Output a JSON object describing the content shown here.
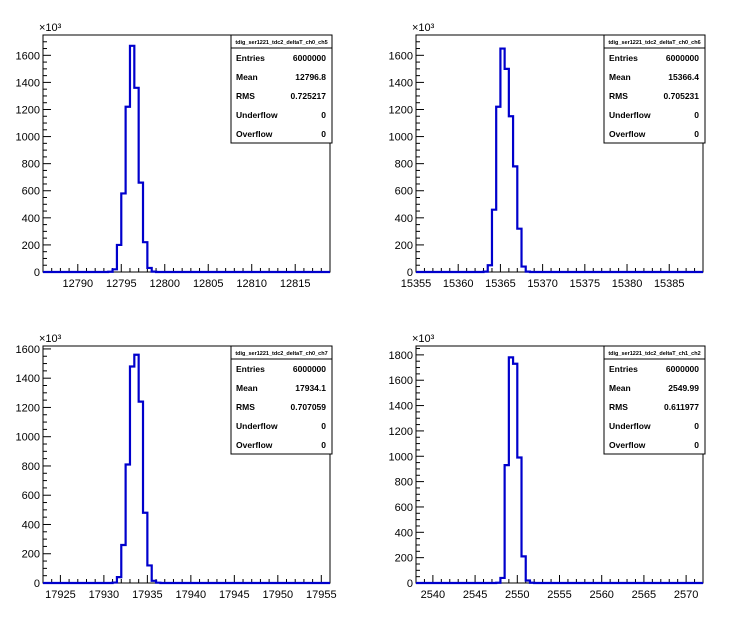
{
  "chart_data": [
    {
      "type": "histogram",
      "stats": {
        "title": "tdig_ser1221_tdc2_deltaT_ch0_ch5",
        "rows": [
          [
            "Entries",
            "6000000"
          ],
          [
            "Mean",
            "12796.8"
          ],
          [
            "RMS",
            "0.725217"
          ],
          [
            "Underflow",
            "0"
          ],
          [
            "Overflow",
            "0"
          ]
        ]
      },
      "y_exponent": "10³",
      "xlim": [
        12786,
        12819
      ],
      "ylim": [
        0,
        1750
      ],
      "x_ticks": [
        12790,
        12795,
        12800,
        12805,
        12810,
        12815
      ],
      "x_tick_labels": [
        "12790",
        "12795",
        "12800",
        "12805",
        "12810",
        "12815"
      ],
      "y_ticks": [
        0,
        200,
        400,
        600,
        800,
        1000,
        1200,
        1400,
        1600
      ],
      "y_tick_labels": [
        "0",
        "200",
        "400",
        "600",
        "800",
        "1000",
        "1200",
        "1400",
        "1600"
      ],
      "bin_width": 0.5,
      "bins": [
        {
          "x": 12794.0,
          "y": 2
        },
        {
          "x": 12794.5,
          "y": 20
        },
        {
          "x": 12795.0,
          "y": 200
        },
        {
          "x": 12795.5,
          "y": 580
        },
        {
          "x": 12796.0,
          "y": 1220
        },
        {
          "x": 12796.5,
          "y": 1670
        },
        {
          "x": 12797.0,
          "y": 1360
        },
        {
          "x": 12797.5,
          "y": 660
        },
        {
          "x": 12798.0,
          "y": 220
        },
        {
          "x": 12798.5,
          "y": 30
        },
        {
          "x": 12799.0,
          "y": 3
        }
      ]
    },
    {
      "type": "histogram",
      "stats": {
        "title": "tdig_ser1221_tdc2_deltaT_ch0_ch6",
        "rows": [
          [
            "Entries",
            "6000000"
          ],
          [
            "Mean",
            "15366.4"
          ],
          [
            "RMS",
            "0.705231"
          ],
          [
            "Underflow",
            "0"
          ],
          [
            "Overflow",
            "0"
          ]
        ]
      },
      "y_exponent": "10³",
      "xlim": [
        15355,
        15389
      ],
      "ylim": [
        0,
        1750
      ],
      "x_ticks": [
        15355,
        15360,
        15365,
        15370,
        15375,
        15380,
        15385
      ],
      "x_tick_labels": [
        "15355",
        "15360",
        "15365",
        "15370",
        "15375",
        "15380",
        "15385"
      ],
      "y_ticks": [
        0,
        200,
        400,
        600,
        800,
        1000,
        1200,
        1400,
        1600
      ],
      "y_tick_labels": [
        "0",
        "200",
        "400",
        "600",
        "800",
        "1000",
        "1200",
        "1400",
        "1600"
      ],
      "bin_width": 0.5,
      "bins": [
        {
          "x": 15363.5,
          "y": 3
        },
        {
          "x": 15364.0,
          "y": 50
        },
        {
          "x": 15364.5,
          "y": 460
        },
        {
          "x": 15365.0,
          "y": 1220
        },
        {
          "x": 15365.5,
          "y": 1650
        },
        {
          "x": 15366.0,
          "y": 1500
        },
        {
          "x": 15366.5,
          "y": 1150
        },
        {
          "x": 15367.0,
          "y": 780
        },
        {
          "x": 15367.5,
          "y": 320
        },
        {
          "x": 15368.0,
          "y": 40
        },
        {
          "x": 15368.5,
          "y": 3
        }
      ]
    },
    {
      "type": "histogram",
      "stats": {
        "title": "tdig_ser1221_tdc2_deltaT_ch0_ch7",
        "rows": [
          [
            "Entries",
            "6000000"
          ],
          [
            "Mean",
            "17934.1"
          ],
          [
            "RMS",
            "0.707059"
          ],
          [
            "Underflow",
            "0"
          ],
          [
            "Overflow",
            "0"
          ]
        ]
      },
      "y_exponent": "10³",
      "xlim": [
        17923,
        17956
      ],
      "ylim": [
        0,
        1620
      ],
      "x_ticks": [
        17925,
        17930,
        17935,
        17940,
        17945,
        17950,
        17955
      ],
      "x_tick_labels": [
        "17925",
        "17930",
        "17935",
        "17940",
        "17945",
        "17950",
        "17955"
      ],
      "y_ticks": [
        0,
        200,
        400,
        600,
        800,
        1000,
        1200,
        1400,
        1600
      ],
      "y_tick_labels": [
        "0",
        "200",
        "400",
        "600",
        "800",
        "1000",
        "1200",
        "1400",
        "1600"
      ],
      "bin_width": 0.5,
      "bins": [
        {
          "x": 17931.5,
          "y": 3
        },
        {
          "x": 17932.0,
          "y": 40
        },
        {
          "x": 17932.5,
          "y": 260
        },
        {
          "x": 17933.0,
          "y": 810
        },
        {
          "x": 17933.5,
          "y": 1480
        },
        {
          "x": 17934.0,
          "y": 1560
        },
        {
          "x": 17934.5,
          "y": 1240
        },
        {
          "x": 17935.0,
          "y": 480
        },
        {
          "x": 17935.5,
          "y": 120
        },
        {
          "x": 17936.0,
          "y": 15
        },
        {
          "x": 17936.5,
          "y": 2
        }
      ]
    },
    {
      "type": "histogram",
      "stats": {
        "title": "tdig_ser1221_tdc2_deltaT_ch1_ch2",
        "rows": [
          [
            "Entries",
            "6000000"
          ],
          [
            "Mean",
            "2549.99"
          ],
          [
            "RMS",
            "0.611977"
          ],
          [
            "Underflow",
            "0"
          ],
          [
            "Overflow",
            "0"
          ]
        ]
      },
      "y_exponent": "10³",
      "xlim": [
        2538,
        2572
      ],
      "ylim": [
        0,
        1870
      ],
      "x_ticks": [
        2540,
        2545,
        2550,
        2555,
        2560,
        2565,
        2570
      ],
      "x_tick_labels": [
        "2540",
        "2545",
        "2550",
        "2555",
        "2560",
        "2565",
        "2570"
      ],
      "y_ticks": [
        0,
        200,
        400,
        600,
        800,
        1000,
        1200,
        1400,
        1600,
        1800
      ],
      "y_tick_labels": [
        "0",
        "200",
        "400",
        "600",
        "800",
        "1000",
        "1200",
        "1400",
        "1600",
        "1800"
      ],
      "bin_width": 0.5,
      "bins": [
        {
          "x": 2548.0,
          "y": 2
        },
        {
          "x": 2548.5,
          "y": 40
        },
        {
          "x": 2549.0,
          "y": 930
        },
        {
          "x": 2549.5,
          "y": 1780
        },
        {
          "x": 2550.0,
          "y": 1730
        },
        {
          "x": 2550.5,
          "y": 990
        },
        {
          "x": 2551.0,
          "y": 210
        },
        {
          "x": 2551.5,
          "y": 20
        },
        {
          "x": 2552.0,
          "y": 2
        }
      ]
    }
  ]
}
